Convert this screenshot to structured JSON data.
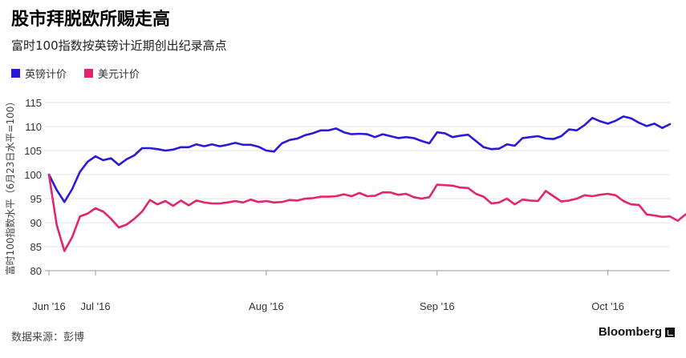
{
  "header": {
    "title": "股市拜脱欧所赐走高",
    "subtitle": "富时100指数按英镑计近期创出纪录高点"
  },
  "footer": {
    "source": "数据来源：彭博",
    "brand": "Bloomberg"
  },
  "chart_data": {
    "type": "line",
    "ylabel": "富时100指数水平（6月23日水平=100）",
    "ylim": [
      80,
      115
    ],
    "yticks": [
      80,
      85,
      90,
      95,
      100,
      105,
      110,
      115
    ],
    "xticks": [
      "Jun '16",
      "Jul '16",
      "Aug '16",
      "Sep '16",
      "Oct '16"
    ],
    "grid": true,
    "legend_position": "top-left",
    "colors": {
      "gbp": "#2a19d6",
      "usd": "#e5236f"
    },
    "series": [
      {
        "name": "英镑计价",
        "values": [
          100,
          96.8,
          94.3,
          97.0,
          100.6,
          102.7,
          103.8,
          103.0,
          103.4,
          102.0,
          103.2,
          104.0,
          105.5,
          105.5,
          105.3,
          105.0,
          105.2,
          105.7,
          105.7,
          106.3,
          105.9,
          106.3,
          105.9,
          106.2,
          106.6,
          106.2,
          106.2,
          105.8,
          105.0,
          104.8,
          106.5,
          107.2,
          107.5,
          108.2,
          108.6,
          109.2,
          109.2,
          109.6,
          108.8,
          108.4,
          108.5,
          108.4,
          107.8,
          108.4,
          108.0,
          107.6,
          107.8,
          107.6,
          107.0,
          106.5,
          108.8,
          108.6,
          107.8,
          108.1,
          108.3,
          107.0,
          105.7,
          105.3,
          105.4,
          106.3,
          106.0,
          107.6,
          107.8,
          108.0,
          107.5,
          107.4,
          108.0,
          109.4,
          109.2,
          110.3,
          111.8,
          111.1,
          110.6,
          111.2,
          112.1,
          111.7,
          110.8,
          110.1,
          110.6,
          109.7,
          110.5
        ]
      },
      {
        "name": "美元计价",
        "values": [
          100,
          89.5,
          84.1,
          87.0,
          91.3,
          91.9,
          93.0,
          92.3,
          90.8,
          89.0,
          89.6,
          90.8,
          92.3,
          94.7,
          93.8,
          94.5,
          93.5,
          94.6,
          93.6,
          94.6,
          94.2,
          94.0,
          94.0,
          94.2,
          94.5,
          94.2,
          94.8,
          94.3,
          94.5,
          94.2,
          94.3,
          94.7,
          94.6,
          95.0,
          95.1,
          95.4,
          95.4,
          95.5,
          95.9,
          95.5,
          96.2,
          95.5,
          95.6,
          96.3,
          96.3,
          95.8,
          96.0,
          95.3,
          95.0,
          95.3,
          97.9,
          97.8,
          97.7,
          97.3,
          97.2,
          96.0,
          95.4,
          94.0,
          94.2,
          95.0,
          93.8,
          94.8,
          94.6,
          94.5,
          96.6,
          95.5,
          94.4,
          94.6,
          95.0,
          95.7,
          95.5,
          95.8,
          96.0,
          95.7,
          94.5,
          93.8,
          93.7,
          91.7,
          91.5,
          91.2,
          91.3,
          90.4,
          91.7
        ]
      }
    ]
  }
}
